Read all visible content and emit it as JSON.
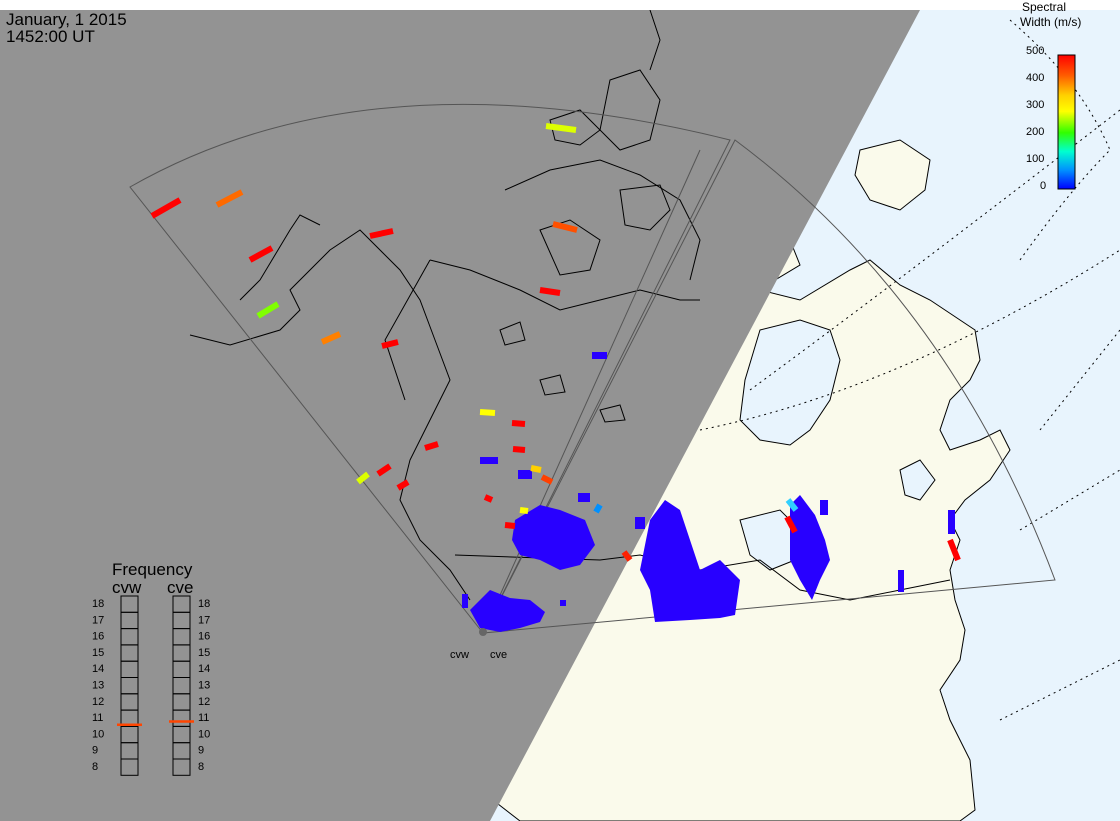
{
  "header": {
    "date": "January, 1 2015",
    "time": "1452:00 UT"
  },
  "colorbar": {
    "title_line1": "Spectral",
    "title_line2": "Width (m/s)",
    "ticks": [
      "500",
      "400",
      "300",
      "200",
      "100",
      "0"
    ],
    "gradient": [
      "#ff0000",
      "#ff6a00",
      "#ffd700",
      "#ffff00",
      "#40ff00",
      "#00ffd0",
      "#00a0ff",
      "#0000ff"
    ]
  },
  "frequency": {
    "title": "Frequency",
    "radars": [
      {
        "label": "cvw",
        "value_mhz": 10.6
      },
      {
        "label": "cve",
        "value_mhz": 10.8
      }
    ],
    "scale": [
      "18",
      "17",
      "16",
      "15",
      "14",
      "13",
      "12",
      "11",
      "10",
      "9",
      "8"
    ]
  },
  "radar_labels": [
    "cvw",
    "cve"
  ],
  "colors": {
    "night": "#939393",
    "land": "#fafaeb",
    "ocean": "#e8f4fd",
    "frequency_marker": "#ff4500",
    "blue_echo": "#2800ff"
  }
}
